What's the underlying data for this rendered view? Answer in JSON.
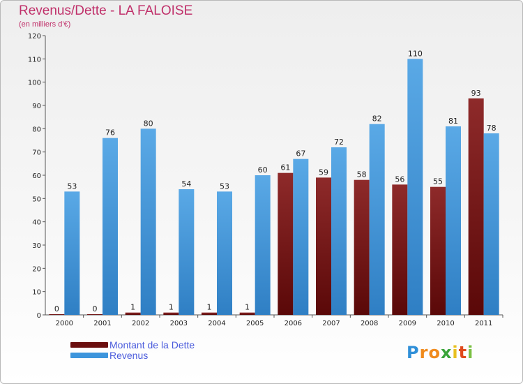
{
  "chart_data": {
    "type": "bar",
    "title": "Revenus/Dette - LA FALOISE",
    "subtitle": "(en milliers d'€)",
    "categories": [
      "2000",
      "2001",
      "2002",
      "2003",
      "2004",
      "2005",
      "2006",
      "2007",
      "2008",
      "2009",
      "2010",
      "2011"
    ],
    "series": [
      {
        "name": "Montant de la Dette",
        "values": [
          0,
          0,
          1,
          1,
          1,
          1,
          61,
          59,
          58,
          56,
          55,
          93
        ],
        "color": "#7a1f1f"
      },
      {
        "name": "Revenus",
        "values": [
          53,
          76,
          80,
          54,
          53,
          60,
          67,
          72,
          82,
          110,
          81,
          78
        ],
        "color": "#4a9ee0"
      }
    ],
    "ylim": [
      0,
      120
    ],
    "yticks": [
      0,
      10,
      20,
      30,
      40,
      50,
      60,
      70,
      80,
      90,
      100,
      110,
      120
    ],
    "grid": false,
    "legend": "bottom-left"
  },
  "legend": {
    "debt_label": "Montant de la Dette",
    "revenue_label": "Revenus",
    "debt_color": "#6b0f0f",
    "revenue_color": "#3d95dc"
  },
  "logo": {
    "letters": [
      "P",
      "r",
      "o",
      "x",
      "i",
      "t",
      "i"
    ],
    "colors": [
      "#2f8fd8",
      "#f08a1c",
      "#f08a1c",
      "#3aa43a",
      "#e8c020",
      "#e04a1c",
      "#7bc043"
    ]
  }
}
